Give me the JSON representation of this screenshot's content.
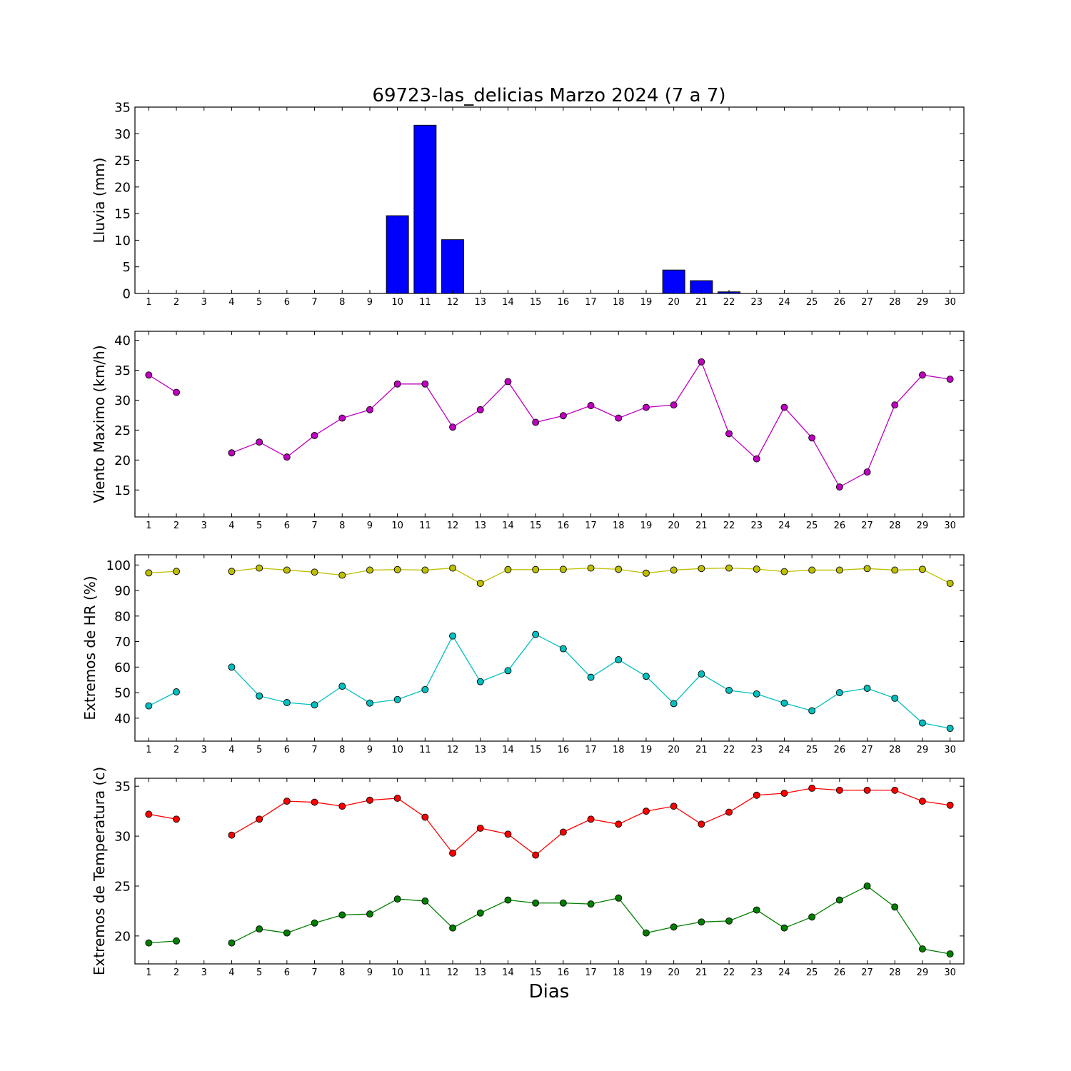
{
  "figure": {
    "title": "69723-las_delicias Marzo 2024  (7 a 7)",
    "xlabel": "Dias"
  },
  "chart_data": [
    {
      "type": "bar",
      "ylabel": "Lluvia (mm)",
      "categories": [
        1,
        2,
        3,
        4,
        5,
        6,
        7,
        8,
        9,
        10,
        11,
        12,
        13,
        14,
        15,
        16,
        17,
        18,
        19,
        20,
        21,
        22,
        23,
        24,
        25,
        26,
        27,
        28,
        29,
        30
      ],
      "values": [
        0,
        0,
        0,
        0,
        0,
        0,
        0,
        0,
        0,
        14.6,
        31.6,
        10.1,
        0,
        0,
        0,
        0,
        0,
        0,
        0,
        4.4,
        2.4,
        0.3,
        0,
        0,
        0,
        0,
        0,
        0,
        0,
        0
      ],
      "ylim": [
        0,
        35
      ],
      "yticks": [
        0,
        5,
        10,
        15,
        20,
        25,
        30,
        35
      ],
      "color": "#0000ff"
    },
    {
      "type": "line",
      "ylabel": "Viento Maximo (km/h)",
      "x": [
        1,
        2,
        3,
        4,
        5,
        6,
        7,
        8,
        9,
        10,
        11,
        12,
        13,
        14,
        15,
        16,
        17,
        18,
        19,
        20,
        21,
        22,
        23,
        24,
        25,
        26,
        27,
        28,
        29,
        30
      ],
      "series": [
        {
          "values": [
            34.2,
            31.3,
            null,
            21.2,
            23.0,
            20.5,
            24.1,
            27.0,
            28.4,
            32.7,
            32.7,
            25.5,
            28.4,
            33.1,
            26.3,
            27.4,
            29.1,
            27.0,
            28.8,
            29.2,
            36.4,
            24.4,
            20.2,
            28.8,
            23.7,
            15.5,
            18.0,
            29.2,
            34.2,
            33.5
          ],
          "color": "#bf00bf"
        }
      ],
      "ylim": [
        10.5,
        41.5
      ],
      "yticks": [
        15,
        20,
        25,
        30,
        35,
        40
      ]
    },
    {
      "type": "line",
      "ylabel": "Extremos de HR (%)",
      "x": [
        1,
        2,
        3,
        4,
        5,
        6,
        7,
        8,
        9,
        10,
        11,
        12,
        13,
        14,
        15,
        16,
        17,
        18,
        19,
        20,
        21,
        22,
        23,
        24,
        25,
        26,
        27,
        28,
        29,
        30
      ],
      "series": [
        {
          "values": [
            96.9,
            97.5,
            null,
            97.5,
            98.8,
            98.0,
            97.2,
            96.0,
            98.0,
            98.2,
            98.0,
            98.8,
            92.8,
            98.2,
            98.2,
            98.3,
            98.8,
            98.3,
            96.8,
            98.0,
            98.6,
            98.8,
            98.4,
            97.4,
            98.0,
            98.0,
            98.6,
            98.0,
            98.3,
            92.8
          ],
          "color": "#bfbf00"
        },
        {
          "values": [
            44.8,
            50.3,
            null,
            60.0,
            48.7,
            46.1,
            45.2,
            52.5,
            45.9,
            47.3,
            51.2,
            72.2,
            54.3,
            58.6,
            72.8,
            67.2,
            56.0,
            62.9,
            56.4,
            45.7,
            57.3,
            50.9,
            49.5,
            45.9,
            42.9,
            50.0,
            51.7,
            47.8,
            38.1,
            36.0
          ],
          "color": "#00bfbf"
        }
      ],
      "ylim": [
        31,
        104
      ],
      "yticks": [
        40,
        50,
        60,
        70,
        80,
        90,
        100
      ]
    },
    {
      "type": "line",
      "ylabel": "Extremos de Temperatura (c)",
      "x": [
        1,
        2,
        3,
        4,
        5,
        6,
        7,
        8,
        9,
        10,
        11,
        12,
        13,
        14,
        15,
        16,
        17,
        18,
        19,
        20,
        21,
        22,
        23,
        24,
        25,
        26,
        27,
        28,
        29,
        30
      ],
      "series": [
        {
          "values": [
            32.2,
            31.7,
            null,
            30.1,
            31.7,
            33.5,
            33.4,
            33.0,
            33.6,
            33.8,
            31.9,
            28.3,
            30.8,
            30.2,
            28.1,
            30.4,
            31.7,
            31.2,
            32.5,
            33.0,
            31.2,
            32.4,
            34.1,
            34.3,
            34.8,
            34.6,
            34.6,
            34.6,
            33.5,
            33.1
          ],
          "color": "#ff0000"
        },
        {
          "values": [
            19.3,
            19.5,
            null,
            19.3,
            20.7,
            20.3,
            21.3,
            22.1,
            22.2,
            23.7,
            23.5,
            20.8,
            22.3,
            23.6,
            23.3,
            23.3,
            23.2,
            23.8,
            20.3,
            20.9,
            21.4,
            21.5,
            22.6,
            20.8,
            21.9,
            23.6,
            25.0,
            22.9,
            18.7,
            18.2
          ],
          "color": "#007f00"
        }
      ],
      "ylim": [
        17.2,
        35.8
      ],
      "yticks": [
        20,
        25,
        30,
        35
      ]
    }
  ]
}
